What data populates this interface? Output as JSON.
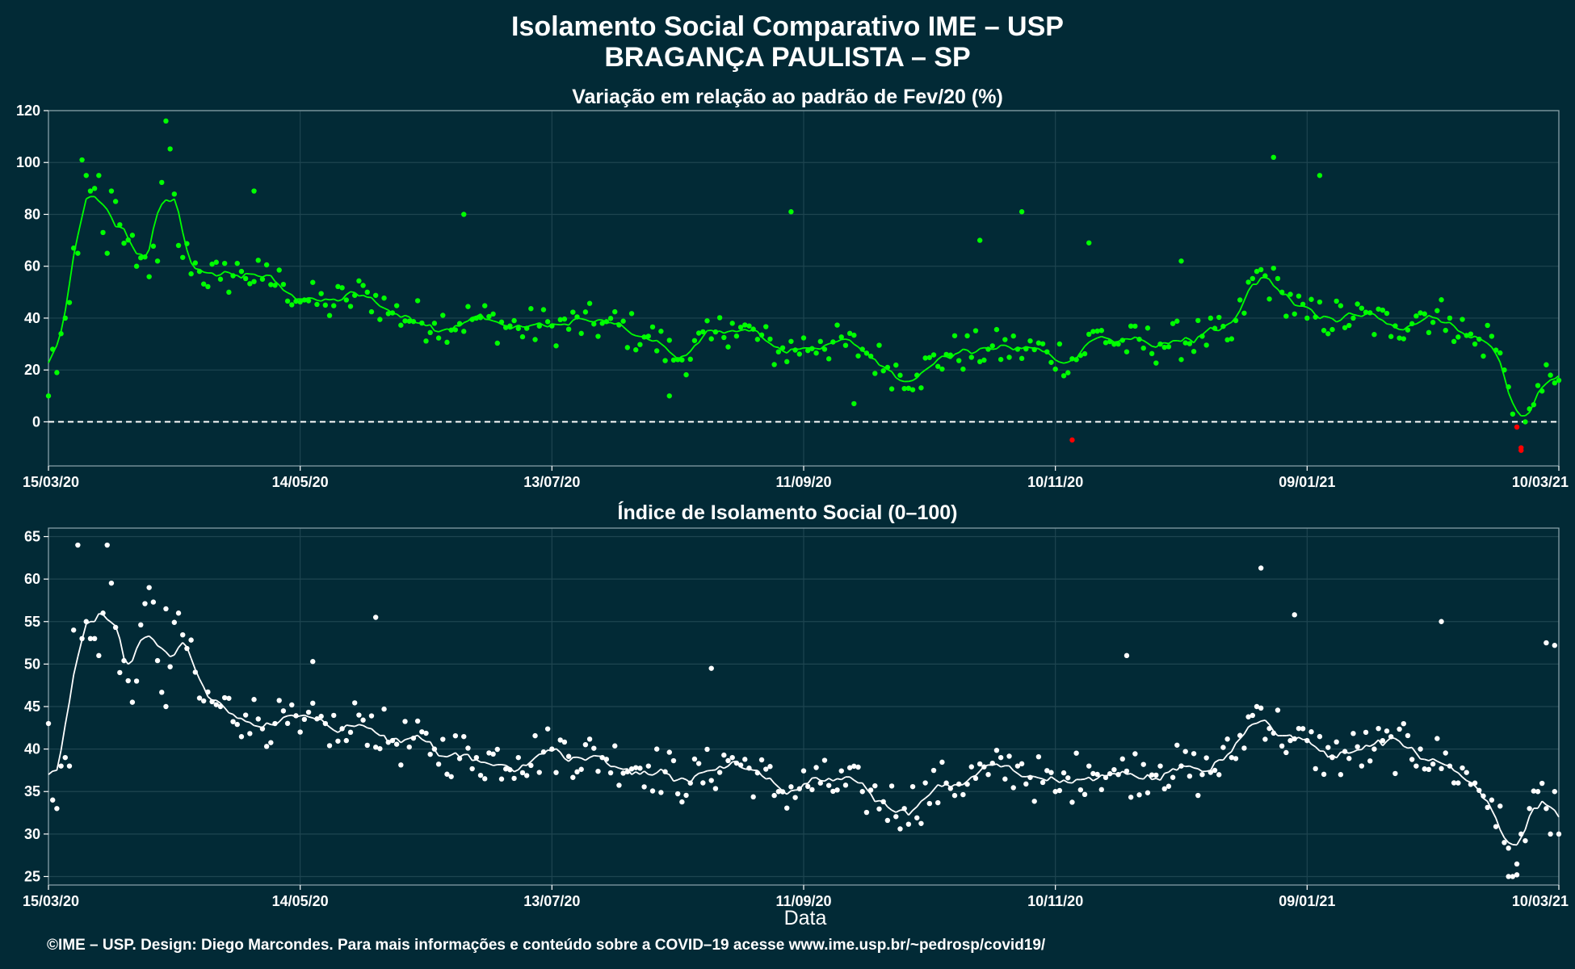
{
  "header": {
    "title_line1": "Isolamento Social Comparativo IME – USP",
    "title_line2": "BRAGANÇA PAULISTA – SP"
  },
  "footer": "©IME – USP. Design: Diego Marcondes. Para mais informações e conteúdo sobre a COVID–19 acesse www.ime.usp.br/~pedrosp/covid19/",
  "colors": {
    "background": "#022A36",
    "positive": "#00FF00",
    "negative": "#FF0000",
    "index_points": "#FFFFFF",
    "grid": "#1E4550"
  },
  "chart_data": [
    {
      "type": "scatter",
      "title": "Variação em relação ao padrão de Fev/20 (%)",
      "xlabel": "",
      "ylabel": "",
      "x_range": [
        "2020-03-15",
        "2021-03-10"
      ],
      "x_ticks": [
        "15/03/20",
        "14/05/20",
        "13/07/20",
        "11/09/20",
        "10/11/20",
        "09/01/21",
        "10/03/21"
      ],
      "ylim": [
        -17,
        120
      ],
      "y_ticks": [
        0,
        20,
        40,
        60,
        80,
        100,
        120
      ],
      "reference_line": 0,
      "grid": true,
      "series": [
        {
          "style": "points + 7-day moving average line",
          "color_rule": "green when >= 0, red when < 0",
          "keypoints": [
            [
              "2020-03-15",
              10
            ],
            [
              "2020-03-16",
              28
            ],
            [
              "2020-03-17",
              19
            ],
            [
              "2020-03-18",
              34
            ],
            [
              "2020-03-19",
              40
            ],
            [
              "2020-03-20",
              46
            ],
            [
              "2020-03-21",
              67
            ],
            [
              "2020-03-22",
              65
            ],
            [
              "2020-03-23",
              101
            ],
            [
              "2020-03-24",
              95
            ],
            [
              "2020-03-25",
              89
            ],
            [
              "2020-03-26",
              90
            ],
            [
              "2020-03-27",
              95
            ],
            [
              "2020-03-28",
              73
            ],
            [
              "2020-03-29",
              65
            ],
            [
              "2020-03-30",
              89
            ],
            [
              "2020-04-01",
              76
            ],
            [
              "2020-04-05",
              60
            ],
            [
              "2020-04-10",
              62
            ],
            [
              "2020-04-12",
              116
            ],
            [
              "2020-04-15",
              68
            ],
            [
              "2020-04-20",
              58
            ],
            [
              "2020-04-25",
              55
            ],
            [
              "2020-04-30",
              58
            ],
            [
              "2020-05-05",
              55
            ],
            [
              "2020-05-10",
              53
            ],
            [
              "2020-05-15",
              47
            ],
            [
              "2020-05-20",
              45
            ],
            [
              "2020-05-25",
              47
            ],
            [
              "2020-05-30",
              50
            ],
            [
              "2020-06-05",
              42
            ],
            [
              "2020-06-15",
              38
            ],
            [
              "2020-06-25",
              40
            ],
            [
              "2020-07-05",
              36
            ],
            [
              "2020-07-13",
              37
            ],
            [
              "2020-07-25",
              38
            ],
            [
              "2020-08-05",
              33
            ],
            [
              "2020-08-12",
              24
            ],
            [
              "2020-08-20",
              32
            ],
            [
              "2020-08-25",
              38
            ],
            [
              "2020-09-05",
              27
            ],
            [
              "2020-09-15",
              31
            ],
            [
              "2020-09-25",
              28
            ],
            [
              "2020-10-01",
              21
            ],
            [
              "2020-10-08",
              18
            ],
            [
              "2020-10-15",
              26
            ],
            [
              "2020-10-25",
              28
            ],
            [
              "2020-11-01",
              28
            ],
            [
              "2020-11-08",
              27
            ],
            [
              "2020-11-15",
              24
            ],
            [
              "2020-11-20",
              35
            ],
            [
              "2020-11-25",
              30
            ],
            [
              "2020-12-05",
              30
            ],
            [
              "2020-12-15",
              33
            ],
            [
              "2020-12-22",
              32
            ],
            [
              "2020-12-28",
              58
            ],
            [
              "2021-01-03",
              50
            ],
            [
              "2021-01-09",
              40
            ],
            [
              "2021-01-20",
              40
            ],
            [
              "2021-01-30",
              37
            ],
            [
              "2021-02-05",
              42
            ],
            [
              "2021-02-12",
              40
            ],
            [
              "2021-02-18",
              30
            ],
            [
              "2021-02-22",
              33
            ],
            [
              "2021-02-25",
              20
            ],
            [
              "2021-02-27",
              3
            ],
            [
              "2021-02-28",
              -2
            ],
            [
              "2021-03-01",
              -10
            ],
            [
              "2021-03-02",
              0
            ],
            [
              "2021-03-03",
              5
            ],
            [
              "2021-03-05",
              14
            ],
            [
              "2021-03-07",
              22
            ],
            [
              "2021-03-08",
              18
            ],
            [
              "2021-03-09",
              15
            ],
            [
              "2021-03-10",
              16
            ]
          ],
          "outliers": [
            [
              "2020-09-08",
              81
            ],
            [
              "2020-11-02",
              81
            ],
            [
              "2020-10-23",
              70
            ],
            [
              "2020-11-18",
              69
            ],
            [
              "2020-06-22",
              80
            ],
            [
              "2020-05-03",
              89
            ],
            [
              "2021-01-01",
              102
            ],
            [
              "2021-01-12",
              95
            ],
            [
              "2020-12-10",
              62
            ],
            [
              "2020-11-14",
              -7
            ],
            [
              "2021-03-01",
              -11
            ],
            [
              "2020-08-10",
              10
            ],
            [
              "2020-09-23",
              7
            ]
          ]
        }
      ]
    },
    {
      "type": "scatter",
      "title": "Índice de Isolamento Social (0–100)",
      "xlabel": "Data",
      "ylabel": "",
      "x_range": [
        "2020-03-15",
        "2021-03-10"
      ],
      "x_ticks": [
        "15/03/20",
        "14/05/20",
        "13/07/20",
        "11/09/20",
        "10/11/20",
        "09/01/21",
        "10/03/21"
      ],
      "ylim": [
        24,
        66
      ],
      "y_ticks": [
        25,
        30,
        35,
        40,
        45,
        50,
        55,
        60,
        65
      ],
      "grid": true,
      "series": [
        {
          "style": "points + 7-day moving average line",
          "keypoints": [
            [
              "2020-03-15",
              43
            ],
            [
              "2020-03-16",
              34
            ],
            [
              "2020-03-17",
              33
            ],
            [
              "2020-03-18",
              38
            ],
            [
              "2020-03-19",
              39
            ],
            [
              "2020-03-20",
              38
            ],
            [
              "2020-03-21",
              54
            ],
            [
              "2020-03-22",
              64
            ],
            [
              "2020-03-23",
              53
            ],
            [
              "2020-03-24",
              55
            ],
            [
              "2020-03-25",
              53
            ],
            [
              "2020-03-26",
              53
            ],
            [
              "2020-03-27",
              51
            ],
            [
              "2020-03-28",
              56
            ],
            [
              "2020-03-29",
              64
            ],
            [
              "2020-04-01",
              49
            ],
            [
              "2020-04-05",
              48
            ],
            [
              "2020-04-08",
              59
            ],
            [
              "2020-04-12",
              45
            ],
            [
              "2020-04-15",
              56
            ],
            [
              "2020-04-20",
              46
            ],
            [
              "2020-04-25",
              45
            ],
            [
              "2020-05-01",
              44
            ],
            [
              "2020-05-08",
              43
            ],
            [
              "2020-05-14",
              42
            ],
            [
              "2020-05-20",
              43
            ],
            [
              "2020-05-25",
              41
            ],
            [
              "2020-05-28",
              44
            ],
            [
              "2020-06-05",
              41
            ],
            [
              "2020-06-15",
              40
            ],
            [
              "2020-06-25",
              39
            ],
            [
              "2020-07-05",
              39
            ],
            [
              "2020-07-13",
              40
            ],
            [
              "2020-07-25",
              39
            ],
            [
              "2020-08-05",
              38
            ],
            [
              "2020-08-15",
              36
            ],
            [
              "2020-08-25",
              39
            ],
            [
              "2020-09-05",
              35
            ],
            [
              "2020-09-15",
              36
            ],
            [
              "2020-09-25",
              35
            ],
            [
              "2020-10-05",
              33
            ],
            [
              "2020-10-15",
              36
            ],
            [
              "2020-10-25",
              37
            ],
            [
              "2020-11-01",
              38
            ],
            [
              "2020-11-10",
              35
            ],
            [
              "2020-11-18",
              38
            ],
            [
              "2020-11-25",
              37
            ],
            [
              "2020-12-05",
              38
            ],
            [
              "2020-12-15",
              37
            ],
            [
              "2020-12-22",
              39
            ],
            [
              "2020-12-28",
              45
            ],
            [
              "2021-01-05",
              41
            ],
            [
              "2021-01-15",
              39
            ],
            [
              "2021-01-25",
              40
            ],
            [
              "2021-02-05",
              40
            ],
            [
              "2021-02-12",
              38
            ],
            [
              "2021-02-18",
              36
            ],
            [
              "2021-02-22",
              34
            ],
            [
              "2021-02-25",
              29
            ],
            [
              "2021-02-27",
              25
            ],
            [
              "2021-03-01",
              30
            ],
            [
              "2021-03-03",
              33
            ],
            [
              "2021-03-05",
              35
            ],
            [
              "2021-03-07",
              33
            ],
            [
              "2021-03-08",
              30
            ],
            [
              "2021-03-09",
              35
            ],
            [
              "2021-03-10",
              30
            ]
          ],
          "outliers": [
            [
              "2020-04-12",
              56.5
            ],
            [
              "2020-06-01",
              55.5
            ],
            [
              "2020-12-29",
              61.3
            ],
            [
              "2021-01-06",
              55.8
            ],
            [
              "2021-02-10",
              55
            ],
            [
              "2021-03-07",
              52.5
            ],
            [
              "2021-03-09",
              52.2
            ],
            [
              "2020-11-27",
              51
            ],
            [
              "2020-08-20",
              49.5
            ],
            [
              "2020-05-17",
              50.3
            ],
            [
              "2021-02-26",
              25
            ],
            [
              "2021-02-28",
              25.2
            ]
          ]
        }
      ]
    }
  ]
}
